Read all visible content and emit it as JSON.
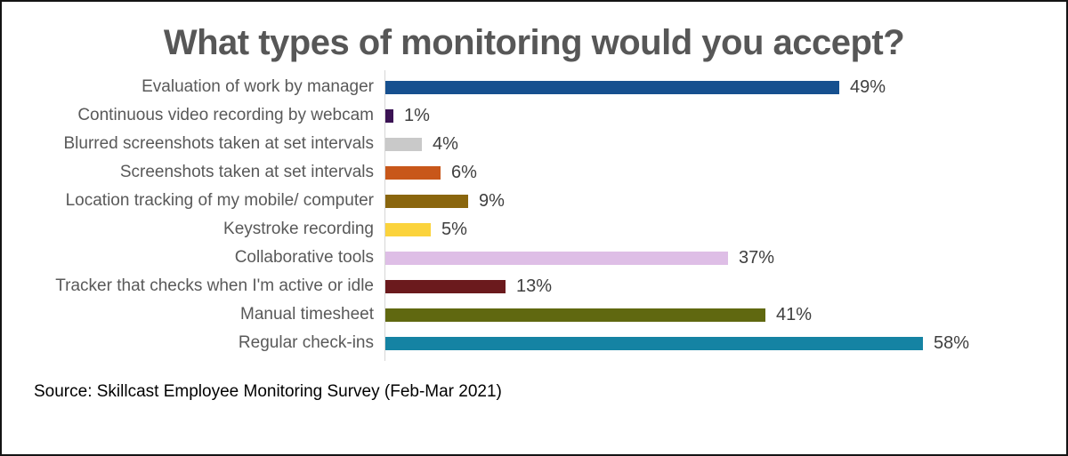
{
  "title": "What types of monitoring would you accept?",
  "source": "Source: Skillcast Employee Monitoring Survey (Feb-Mar 2021)",
  "chart_data": {
    "type": "bar",
    "orientation": "horizontal",
    "title": "What types of monitoring would you accept?",
    "xlabel": "",
    "ylabel": "",
    "xlim": [
      0,
      62
    ],
    "grid": false,
    "legend": false,
    "axis_line_color": "#d6d6d6",
    "category_label_color": "#595959",
    "value_label_color": "#3f3f3f",
    "title_color": "#575757",
    "categories": [
      "Evaluation of work by manager",
      "Continuous video recording by webcam",
      "Blurred screenshots taken at set intervals",
      "Screenshots taken at set intervals",
      "Location tracking of my mobile/ computer",
      "Keystroke recording",
      "Collaborative tools",
      "Tracker that checks when I'm active or idle",
      "Manual timesheet",
      "Regular check-ins"
    ],
    "values": [
      49,
      1,
      4,
      6,
      9,
      5,
      37,
      13,
      41,
      58
    ],
    "value_labels": [
      "49%",
      "1%",
      "4%",
      "6%",
      "9%",
      "5%",
      "37%",
      "13%",
      "41%",
      "58%"
    ],
    "bar_colors": [
      "#16508f",
      "#3b1354",
      "#c9c9c9",
      "#c8571a",
      "#8a660e",
      "#fbd33c",
      "#debee6",
      "#6b1a1d",
      "#606810",
      "#1583a3"
    ]
  }
}
